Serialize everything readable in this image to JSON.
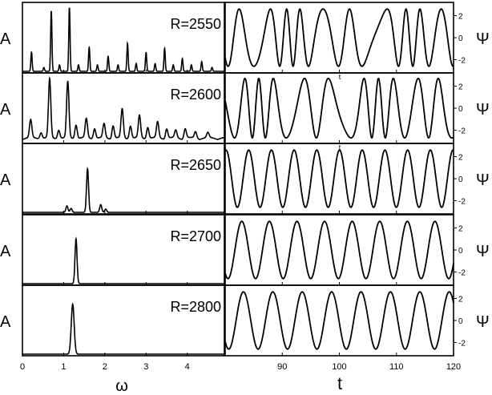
{
  "chart_data": {
    "type": "line",
    "layout": "5 rows x 2 columns of stacked panels (spectrum left, time series right)",
    "spectra": {
      "xlabel": "ω",
      "ylabel": "A",
      "xlim": [
        0,
        4.9
      ],
      "xticks": [
        0,
        1,
        2,
        3,
        4
      ],
      "panels": [
        {
          "label": "R=2550",
          "peaks": [
            [
              0.22,
              0.3
            ],
            [
              0.52,
              0.06
            ],
            [
              0.7,
              0.95
            ],
            [
              0.9,
              0.1
            ],
            [
              1.14,
              1.0
            ],
            [
              1.36,
              0.1
            ],
            [
              1.62,
              0.38
            ],
            [
              1.82,
              0.1
            ],
            [
              2.08,
              0.24
            ],
            [
              2.32,
              0.1
            ],
            [
              2.55,
              0.44
            ],
            [
              2.76,
              0.12
            ],
            [
              3.0,
              0.3
            ],
            [
              3.22,
              0.12
            ],
            [
              3.45,
              0.36
            ],
            [
              3.66,
              0.1
            ],
            [
              3.88,
              0.2
            ],
            [
              4.1,
              0.1
            ],
            [
              4.35,
              0.15
            ],
            [
              4.6,
              0.06
            ]
          ],
          "peak_width": 0.022
        },
        {
          "label": "R=2600",
          "peaks": [
            [
              0.2,
              0.28
            ],
            [
              0.45,
              0.1
            ],
            [
              0.66,
              0.92
            ],
            [
              0.88,
              0.14
            ],
            [
              1.1,
              0.88
            ],
            [
              1.3,
              0.22
            ],
            [
              1.55,
              0.3
            ],
            [
              1.75,
              0.16
            ],
            [
              1.98,
              0.22
            ],
            [
              2.2,
              0.2
            ],
            [
              2.42,
              0.45
            ],
            [
              2.62,
              0.2
            ],
            [
              2.84,
              0.35
            ],
            [
              3.04,
              0.18
            ],
            [
              3.28,
              0.25
            ],
            [
              3.5,
              0.15
            ],
            [
              3.72,
              0.12
            ],
            [
              3.95,
              0.15
            ],
            [
              4.2,
              0.1
            ],
            [
              4.5,
              0.08
            ]
          ],
          "peak_width": 0.04,
          "baseline": 0.07
        },
        {
          "label": "R=2650",
          "peaks": [
            [
              1.08,
              0.1
            ],
            [
              1.18,
              0.06
            ],
            [
              1.58,
              0.68
            ],
            [
              1.9,
              0.12
            ],
            [
              2.02,
              0.05
            ]
          ],
          "peak_width": 0.035
        },
        {
          "label": "R=2700",
          "peaks": [
            [
              1.3,
              0.7
            ]
          ],
          "peak_width": 0.035
        },
        {
          "label": "R=2800",
          "peaks": [
            [
              1.22,
              0.78
            ]
          ],
          "peak_width": 0.05
        }
      ]
    },
    "time_series": {
      "xlabel": "t",
      "ylabel": "Ψ",
      "xlim": [
        80,
        120
      ],
      "xticks": [
        90,
        100,
        110,
        120
      ],
      "yticks": [
        -2,
        0,
        2
      ],
      "ylim": [
        -3.2,
        3.2
      ],
      "panels": [
        {
          "label": "R=2550",
          "shape": "bursting",
          "amplitude": 2.6
        },
        {
          "label": "R=2600",
          "shape": "bursting",
          "amplitude": 2.7
        },
        {
          "label": "R=2650",
          "shape": "sine",
          "amplitude": 2.6,
          "omega": 1.58
        },
        {
          "label": "R=2700",
          "shape": "sine",
          "amplitude": 2.6,
          "omega": 1.3
        },
        {
          "label": "R=2800",
          "shape": "sine",
          "amplitude": 2.6,
          "omega": 1.22
        }
      ],
      "small_t_marks": [
        "t",
        "t"
      ]
    }
  }
}
